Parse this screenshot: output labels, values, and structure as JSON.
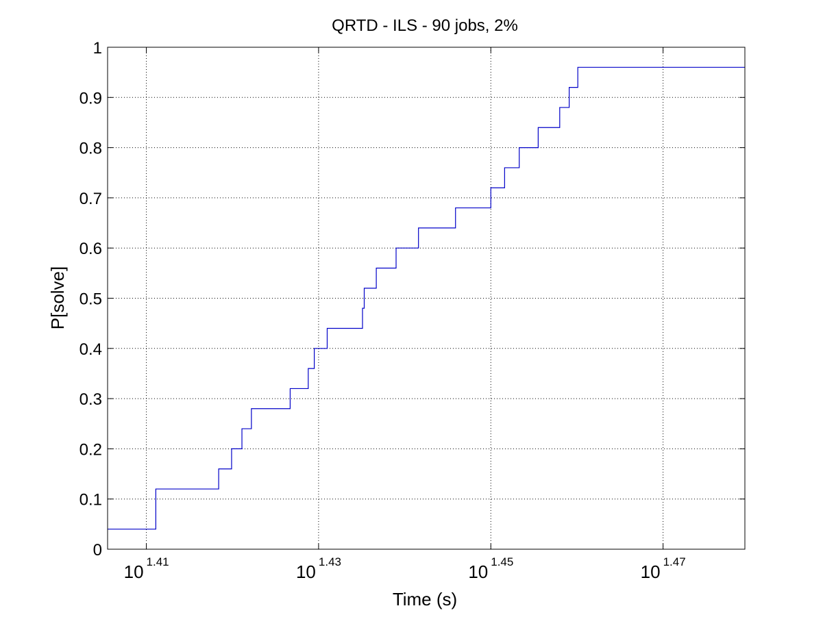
{
  "chart_data": {
    "type": "line",
    "title": "QRTD - ILS - 90 jobs, 2%",
    "xlabel": "Time (s)",
    "ylabel": "P[solve]",
    "x_scale": "log10",
    "x_axis_exponent_range": [
      1.4055,
      1.4795
    ],
    "xlim_exponent": [
      1.4055,
      1.4795
    ],
    "ylim": [
      0,
      1
    ],
    "grid": true,
    "line_color": "#0000c8",
    "x_ticks": [
      {
        "base": "10",
        "exponent": "1.41",
        "value": 1.41
      },
      {
        "base": "10",
        "exponent": "1.43",
        "value": 1.43
      },
      {
        "base": "10",
        "exponent": "1.45",
        "value": 1.45
      },
      {
        "base": "10",
        "exponent": "1.47",
        "value": 1.47
      }
    ],
    "y_ticks": [
      "0",
      "0.1",
      "0.2",
      "0.3",
      "0.4",
      "0.5",
      "0.6",
      "0.7",
      "0.8",
      "0.9",
      "1"
    ],
    "series": [
      {
        "style": "step",
        "x_log10": [
          1.4055,
          1.4111,
          1.4184,
          1.4199,
          1.4211,
          1.4222,
          1.4267,
          1.4288,
          1.4295,
          1.431,
          1.4351,
          1.4353,
          1.4367,
          1.439,
          1.4416,
          1.4459,
          1.45,
          1.4516,
          1.4533,
          1.4555,
          1.458,
          1.4591,
          1.4601,
          1.4795
        ],
        "y": [
          0.04,
          0.12,
          0.16,
          0.2,
          0.24,
          0.28,
          0.32,
          0.36,
          0.4,
          0.44,
          0.48,
          0.52,
          0.56,
          0.6,
          0.64,
          0.68,
          0.72,
          0.76,
          0.8,
          0.84,
          0.88,
          0.92,
          0.96,
          0.96
        ]
      }
    ]
  }
}
